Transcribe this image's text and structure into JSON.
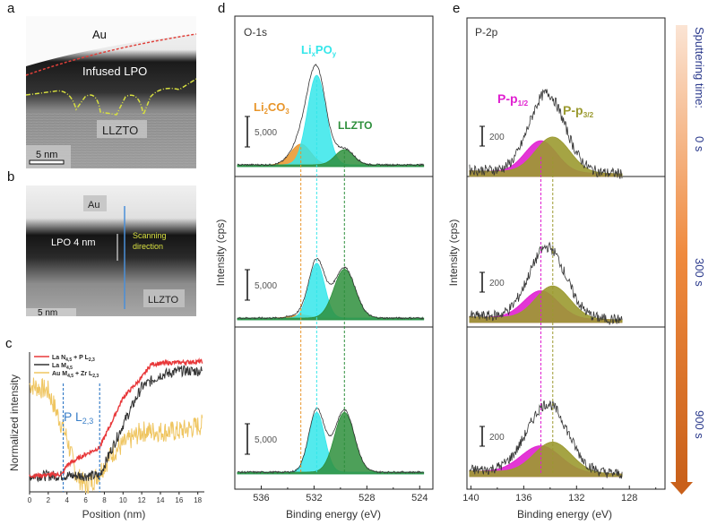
{
  "panels": {
    "a": {
      "label": "a",
      "au": "Au",
      "infused": "Infused LPO",
      "llzto": "LLZTO",
      "scale": "5 nm"
    },
    "b": {
      "label": "b",
      "au": "Au",
      "lpo": "LPO 4 nm",
      "scanning": "Scanning",
      "direction": "direction",
      "llzto": "LLZTO",
      "scale": "5 nm"
    },
    "c": {
      "label": "c",
      "d": "d",
      "e": "e"
    }
  },
  "colors": {
    "red": "#e8383a",
    "black": "#333333",
    "yellow": "#efc560",
    "dash": "#3a7fc8",
    "li2co3": "#e8952a",
    "lixpoy": "#35e6ea",
    "llzto": "#2e8f3c",
    "pp12": "#e020d0",
    "pp32": "#9b9a30",
    "sputter_text": "#2b3a8c"
  },
  "chart_data": [
    {
      "type": "line",
      "panel": "c",
      "xlabel": "Position (nm)",
      "ylabel": "Normalized intensity",
      "xlim": [
        0,
        18.7
      ],
      "xticks": [
        0,
        2,
        4,
        6,
        8,
        10,
        12,
        14,
        16,
        18
      ],
      "annotation": {
        "text_main": "P L",
        "text_sub": "2,3",
        "x_markers": [
          3.6,
          7.5
        ]
      },
      "series": [
        {
          "name": "La N",
          "name_sub": "4,5",
          "name_rest": " + P L",
          "name_sub2": "2,3",
          "color": "#e8383a",
          "x": [
            0,
            3.5,
            4,
            6,
            7.5,
            9,
            10,
            12,
            13,
            15,
            18.5
          ],
          "y": [
            0.12,
            0.13,
            0.2,
            0.28,
            0.33,
            0.55,
            0.7,
            0.85,
            0.95,
            0.96,
            0.97
          ]
        },
        {
          "name": "La M",
          "name_sub": "4,5",
          "name_rest": "",
          "name_sub2": "",
          "color": "#333333",
          "x": [
            0,
            7.5,
            8,
            10,
            12,
            14,
            16,
            18.5
          ],
          "y": [
            0.12,
            0.12,
            0.2,
            0.5,
            0.78,
            0.87,
            0.9,
            0.9
          ]
        },
        {
          "name": "Au M",
          "name_sub": "4,5",
          "name_rest": " + Zr L",
          "name_sub2": "2,3",
          "color": "#efc560",
          "x": [
            0,
            2,
            4,
            5,
            6,
            7,
            9,
            12,
            16,
            18.5
          ],
          "y": [
            0.8,
            0.75,
            0.4,
            0.12,
            0.05,
            0.1,
            0.3,
            0.45,
            0.45,
            0.5
          ]
        }
      ]
    },
    {
      "type": "area",
      "panel": "d",
      "title": "O-1s",
      "xlabel": "Binding energy (eV)",
      "ylabel": "Intensity (cps)",
      "xlim": [
        538,
        523
      ],
      "xticks": [
        536,
        532,
        528,
        524
      ],
      "scale_bar": "5,000",
      "scale_bar_value": 5000,
      "components": [
        {
          "name": "Li",
          "sub": "2",
          "rest": "CO",
          "sub2": "3",
          "center": 533.0,
          "color": "#e8952a"
        },
        {
          "name": "Li",
          "sub": "x",
          "rest": "PO",
          "sub2": "y",
          "center": 531.8,
          "color": "#35e6ea"
        },
        {
          "name": "LLZTO",
          "sub": "",
          "rest": "",
          "sub2": "",
          "center": 529.7,
          "color": "#2e8f3c"
        }
      ],
      "spectra": [
        {
          "sputter": "0 s",
          "amplitudes": [
            3400,
            14700,
            2500
          ],
          "sigmas": [
            0.75,
            0.7,
            0.7
          ]
        },
        {
          "sputter": "300 s",
          "amplitudes": [
            500,
            9000,
            8000
          ],
          "sigmas": [
            0.75,
            0.6,
            0.8
          ]
        },
        {
          "sputter": "900 s",
          "amplitudes": [
            0,
            9800,
            9800
          ],
          "sigmas": [
            0.75,
            0.6,
            0.75
          ]
        }
      ]
    },
    {
      "type": "area",
      "panel": "e",
      "title": "P-2p",
      "xlabel": "Binding energy (eV)",
      "ylabel": "Intensity (cps)",
      "xlim": [
        140.3,
        125.3
      ],
      "xticks": [
        140,
        136,
        132,
        128
      ],
      "scale_bar": "200",
      "scale_bar_value": 200,
      "components": [
        {
          "name": "P-p",
          "sub": "1/2",
          "center": 134.7,
          "color": "#e020d0"
        },
        {
          "name": "P-p",
          "sub": "3/2",
          "center": 133.8,
          "color": "#9b9a30"
        }
      ],
      "spectra": [
        {
          "sputter": "0 s",
          "amplitudes": [
            320,
            360
          ],
          "sigmas": [
            1.2,
            1.3
          ]
        },
        {
          "sputter": "300 s",
          "amplitudes": [
            280,
            330
          ],
          "sigmas": [
            1.3,
            1.3
          ]
        },
        {
          "sputter": "900 s",
          "amplitudes": [
            270,
            310
          ],
          "sigmas": [
            1.5,
            1.4
          ]
        }
      ]
    }
  ],
  "sputtering": {
    "title": "Sputtering time:",
    "times": [
      "0 s",
      "300 s",
      "900 s"
    ]
  }
}
